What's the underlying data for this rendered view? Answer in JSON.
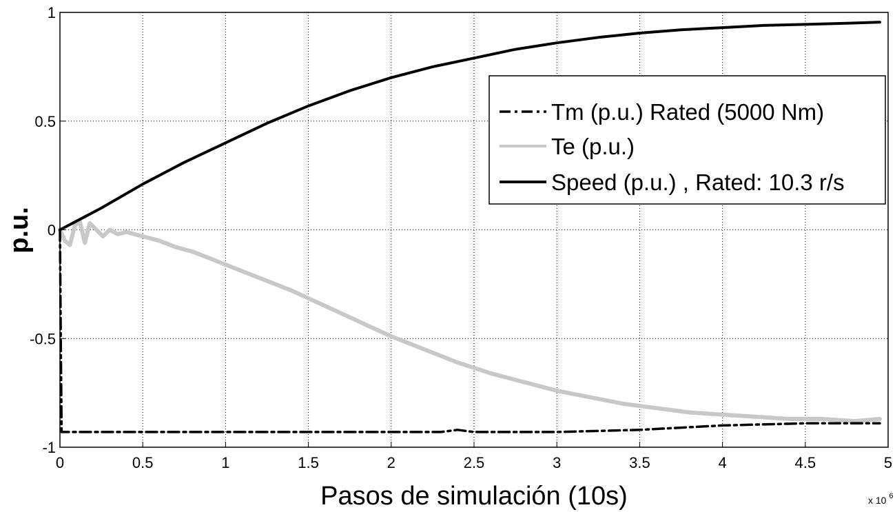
{
  "chart_data": {
    "type": "line",
    "title": "",
    "xlabel": "Pasos de simulación (10s)",
    "ylabel": "p.u.",
    "x_exponent_label": "x 10",
    "x_exponent_power": "6",
    "x_multiplier": 1000000,
    "xlim": [
      0,
      5
    ],
    "ylim": [
      -1,
      1
    ],
    "x_ticks": [
      0,
      0.5,
      1,
      1.5,
      2,
      2.5,
      3,
      3.5,
      4,
      4.5,
      5
    ],
    "x_tick_labels": [
      "0",
      "0.5",
      "1",
      "1.5",
      "2",
      "2.5",
      "3",
      "3.5",
      "4",
      "4.5",
      "5"
    ],
    "y_ticks": [
      -1,
      -0.5,
      0,
      0.5,
      1
    ],
    "y_tick_labels": [
      "-1",
      "-0.5",
      "0",
      "0.5",
      "1"
    ],
    "grid": true,
    "legend_position": "top-right",
    "series": [
      {
        "name": "Tm (p.u.) Rated (5000 Nm)",
        "color": "#000000",
        "style": "dashdot",
        "x": [
          0,
          0.005,
          0.01,
          0.5,
          1,
          1.5,
          2,
          2.3,
          2.4,
          2.5,
          3,
          3.5,
          4,
          4.5,
          4.95
        ],
        "y": [
          0,
          -0.5,
          -0.93,
          -0.93,
          -0.93,
          -0.93,
          -0.93,
          -0.93,
          -0.92,
          -0.93,
          -0.93,
          -0.92,
          -0.9,
          -0.89,
          -0.89
        ]
      },
      {
        "name": "Te (p.u.)",
        "color": "#c8c8c8",
        "style": "solid",
        "x": [
          0,
          0.03,
          0.06,
          0.09,
          0.12,
          0.15,
          0.18,
          0.22,
          0.26,
          0.3,
          0.35,
          0.4,
          0.5,
          0.6,
          0.7,
          0.8,
          0.9,
          1,
          1.2,
          1.4,
          1.6,
          1.8,
          2,
          2.2,
          2.4,
          2.6,
          2.8,
          3,
          3.2,
          3.4,
          3.6,
          3.8,
          4,
          4.2,
          4.4,
          4.6,
          4.8,
          4.95
        ],
        "y": [
          0,
          -0.05,
          -0.07,
          0.02,
          0.04,
          -0.06,
          0.03,
          0.0,
          -0.03,
          0.0,
          -0.02,
          -0.01,
          -0.03,
          -0.05,
          -0.08,
          -0.1,
          -0.13,
          -0.16,
          -0.22,
          -0.28,
          -0.35,
          -0.42,
          -0.49,
          -0.55,
          -0.61,
          -0.66,
          -0.7,
          -0.74,
          -0.77,
          -0.8,
          -0.82,
          -0.84,
          -0.85,
          -0.86,
          -0.87,
          -0.87,
          -0.88,
          -0.87
        ]
      },
      {
        "name": "Speed (p.u.) , Rated: 10.3 r/s",
        "color": "#000000",
        "style": "solid",
        "x": [
          0,
          0.25,
          0.5,
          0.75,
          1,
          1.25,
          1.5,
          1.75,
          2,
          2.25,
          2.5,
          2.75,
          3,
          3.25,
          3.5,
          3.75,
          4,
          4.25,
          4.5,
          4.75,
          4.95
        ],
        "y": [
          0,
          0.1,
          0.21,
          0.31,
          0.4,
          0.49,
          0.57,
          0.64,
          0.7,
          0.75,
          0.79,
          0.83,
          0.86,
          0.885,
          0.905,
          0.92,
          0.93,
          0.94,
          0.945,
          0.95,
          0.955
        ]
      }
    ]
  }
}
